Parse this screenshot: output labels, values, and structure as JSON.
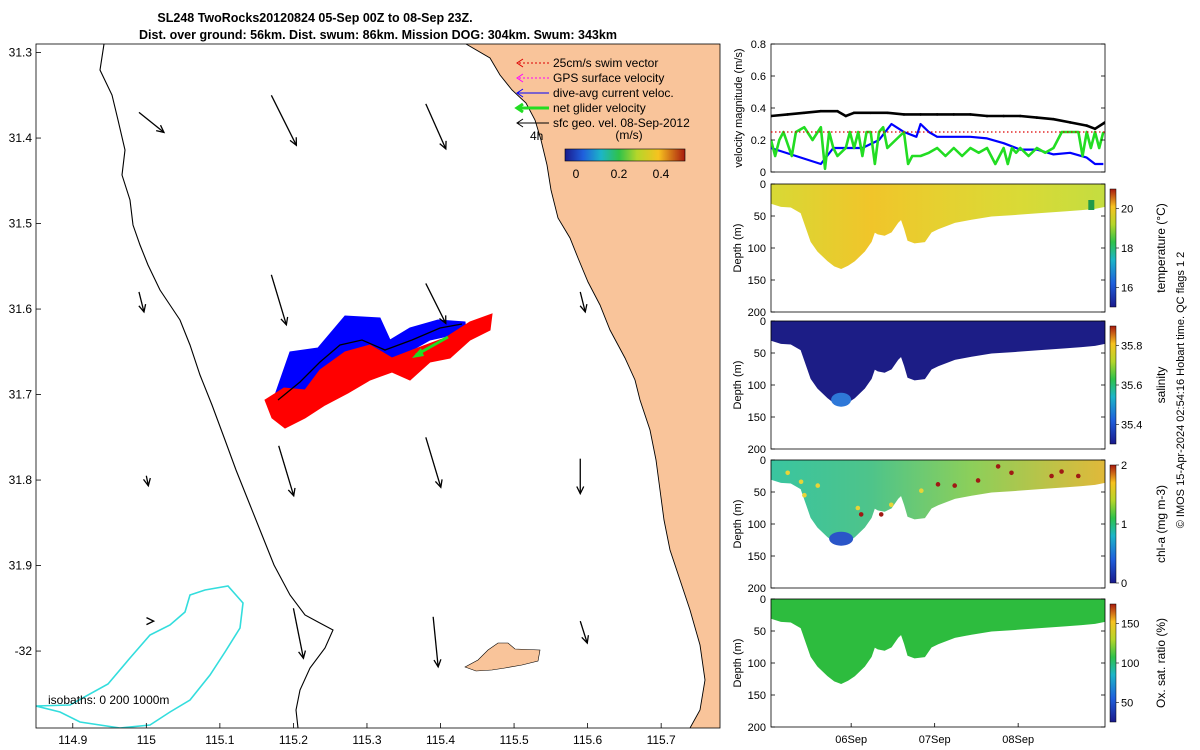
{
  "title": {
    "line1": "SL248 TwoRocks20120824 05-Sep 00Z to 08-Sep 23Z.",
    "line2": "Dist. over ground: 56km. Dist. swum: 86km. Mission DOG: 304km. Swum: 343km"
  },
  "colors": {
    "land": "#f9c49a",
    "coast": "#000000",
    "isobath_shallow": "#000000",
    "isobath_deep": "#33dddd",
    "track_red": "#ff0000",
    "track_blue": "#0000ff",
    "net_green": "#22dd22",
    "vec_black": "#000000",
    "swim_red": "#dd0000",
    "gps_magenta": "#ff00ff"
  },
  "chart_data": [
    {
      "type": "map",
      "id": "glider-map",
      "title": "SL248 TwoRocks20120824 05-Sep 00Z to 08-Sep 23Z.",
      "subtitle": "Dist. over ground: 56km. Dist. swum: 86km. Mission DOG: 304km. Swum: 343km",
      "xlim": [
        114.85,
        115.78
      ],
      "ylim": [
        -32.09,
        -31.29
      ],
      "x_ticks": [
        114.9,
        115.0,
        115.1,
        115.2,
        115.3,
        115.4,
        115.5,
        115.6,
        115.7
      ],
      "x_tick_labels": [
        "114.9",
        "115",
        "115.1",
        "115.2",
        "115.3",
        "115.4",
        "115.5",
        "115.6",
        "115.7"
      ],
      "y_ticks": [
        -31.3,
        -31.4,
        -31.5,
        -31.6,
        -31.7,
        -31.8,
        -31.9,
        -32.0
      ],
      "y_tick_labels": [
        "31.3",
        "31.4",
        "31.5",
        "31.6",
        "31.7",
        "31.8",
        "31.9",
        "-32"
      ],
      "legend": [
        {
          "label": "25cm/s swim vector",
          "color": "#dd0000",
          "style": "dotted"
        },
        {
          "label": "GPS surface velocity",
          "color": "#ff00ff",
          "style": "dotted"
        },
        {
          "label": "dive-avg current veloc.",
          "color": "#0000ff",
          "style": "solid"
        },
        {
          "label": "net glider velocity",
          "color": "#22dd22",
          "style": "thick"
        },
        {
          "label": "sfc geo. vel. 08-Sep-2012",
          "color": "#000000",
          "style": "solid"
        }
      ],
      "time_label": "4h",
      "colorbar": {
        "label": "(m/s)",
        "ticks": [
          "0",
          "0.2",
          "0.4"
        ],
        "range": [
          0,
          0.5
        ]
      },
      "isobath_label": "isobaths: 0   200  1000m",
      "geo_vectors": [
        {
          "lon": 114.99,
          "lat": -31.37,
          "u": 0.025,
          "v": -0.02
        },
        {
          "lon": 115.17,
          "lat": -31.35,
          "u": 0.025,
          "v": -0.05
        },
        {
          "lon": 115.38,
          "lat": -31.36,
          "u": 0.02,
          "v": -0.045
        },
        {
          "lon": 114.99,
          "lat": -31.58,
          "u": 0.005,
          "v": -0.02
        },
        {
          "lon": 115.17,
          "lat": -31.56,
          "u": 0.015,
          "v": -0.05
        },
        {
          "lon": 115.38,
          "lat": -31.57,
          "u": 0.02,
          "v": -0.04
        },
        {
          "lon": 115.59,
          "lat": -31.58,
          "u": 0.005,
          "v": -0.02
        },
        {
          "lon": 115.0,
          "lat": -31.795,
          "u": 0.002,
          "v": -0.01
        },
        {
          "lon": 115.18,
          "lat": -31.76,
          "u": 0.015,
          "v": -0.05
        },
        {
          "lon": 115.38,
          "lat": -31.75,
          "u": 0.015,
          "v": -0.05
        },
        {
          "lon": 115.59,
          "lat": -31.775,
          "u": 0.0,
          "v": -0.035
        },
        {
          "lon": 115.2,
          "lat": -31.95,
          "u": 0.01,
          "v": -0.05
        },
        {
          "lon": 115.39,
          "lat": -31.96,
          "u": 0.005,
          "v": -0.05
        },
        {
          "lon": 115.59,
          "lat": -31.965,
          "u": 0.007,
          "v": -0.022
        },
        {
          "lon": 115.01,
          "lat": -31.965,
          "u": 0.0,
          "v": -0.0
        }
      ]
    },
    {
      "type": "line",
      "id": "velocity-magnitude",
      "ylabel": "velocity magnitude (m/s)",
      "ylim": [
        0,
        0.8
      ],
      "y_ticks": [
        0,
        0.2,
        0.4,
        0.6,
        0.8
      ],
      "xlim": [
        0,
        4.02
      ],
      "series": [
        {
          "name": "sfc speed",
          "color": "#000000",
          "x": [
            0.0,
            0.2,
            0.4,
            0.6,
            0.8,
            0.9,
            1.0,
            1.2,
            1.4,
            1.6,
            1.8,
            2.0,
            2.2,
            2.4,
            2.6,
            2.8,
            3.0,
            3.2,
            3.4,
            3.6,
            3.8,
            3.9,
            4.02
          ],
          "values": [
            0.35,
            0.36,
            0.37,
            0.38,
            0.38,
            0.35,
            0.37,
            0.37,
            0.37,
            0.36,
            0.36,
            0.36,
            0.36,
            0.36,
            0.35,
            0.35,
            0.35,
            0.34,
            0.33,
            0.31,
            0.29,
            0.27,
            0.31
          ]
        },
        {
          "name": "dive-avg current",
          "color": "#0000ff",
          "x": [
            0.0,
            0.3,
            0.6,
            0.75,
            0.9,
            1.1,
            1.3,
            1.45,
            1.6,
            1.75,
            1.8,
            1.9,
            2.0,
            2.2,
            2.4,
            2.6,
            2.8,
            3.0,
            3.2,
            3.4,
            3.6,
            3.8,
            3.9,
            4.0
          ],
          "values": [
            0.15,
            0.1,
            0.05,
            0.15,
            0.15,
            0.15,
            0.2,
            0.3,
            0.25,
            0.22,
            0.3,
            0.25,
            0.22,
            0.22,
            0.22,
            0.21,
            0.18,
            0.14,
            0.14,
            0.11,
            0.12,
            0.09,
            0.05,
            0.05
          ]
        },
        {
          "name": "net glider",
          "color": "#22dd22",
          "x": [
            0.0,
            0.05,
            0.1,
            0.15,
            0.25,
            0.3,
            0.4,
            0.5,
            0.6,
            0.65,
            0.7,
            0.75,
            0.8,
            0.9,
            0.95,
            1.0,
            1.05,
            1.1,
            1.15,
            1.2,
            1.25,
            1.3,
            1.35,
            1.4,
            1.5,
            1.6,
            1.65,
            1.7,
            1.8,
            1.9,
            2.0,
            2.1,
            2.2,
            2.3,
            2.4,
            2.5,
            2.6,
            2.7,
            2.8,
            2.85,
            2.9,
            2.95,
            3.0,
            3.1,
            3.2,
            3.3,
            3.4,
            3.5,
            3.6,
            3.7,
            3.75,
            3.8,
            3.85,
            3.9,
            3.95,
            4.0
          ],
          "values": [
            0.2,
            0.1,
            0.2,
            0.25,
            0.1,
            0.25,
            0.28,
            0.2,
            0.28,
            0.02,
            0.25,
            0.15,
            0.1,
            0.15,
            0.25,
            0.15,
            0.25,
            0.1,
            0.25,
            0.25,
            0.05,
            0.25,
            0.28,
            0.15,
            0.2,
            0.25,
            0.05,
            0.1,
            0.1,
            0.12,
            0.15,
            0.1,
            0.15,
            0.1,
            0.15,
            0.12,
            0.15,
            0.05,
            0.15,
            0.05,
            0.15,
            0.12,
            0.15,
            0.1,
            0.15,
            0.12,
            0.15,
            0.25,
            0.25,
            0.25,
            0.1,
            0.25,
            0.15,
            0.25,
            0.15,
            0.25
          ]
        },
        {
          "name": "swim",
          "color": "#dd0000",
          "x": [
            0.0,
            4.02
          ],
          "values": [
            0.25,
            0.25
          ]
        }
      ]
    },
    {
      "type": "heatmap",
      "id": "section-temperature",
      "ylabel": "Depth (m)",
      "cbar_label": "temperature (°C)",
      "cbar_ticks": [
        "16",
        "18",
        "20"
      ],
      "cbar_range": [
        15,
        21
      ],
      "ylim": [
        0,
        200
      ],
      "y_ticks": [
        0,
        50,
        100,
        150,
        200
      ],
      "dominant_value": 19.5,
      "colormap": "parula-like"
    },
    {
      "type": "heatmap",
      "id": "section-salinity",
      "ylabel": "Depth (m)",
      "cbar_label": "salinity",
      "cbar_ticks": [
        "35.4",
        "35.6",
        "35.8"
      ],
      "cbar_range": [
        35.3,
        35.9
      ],
      "ylim": [
        0,
        200
      ],
      "y_ticks": [
        0,
        50,
        100,
        150,
        200
      ],
      "dominant_value": 35.35,
      "colormap": "parula-like"
    },
    {
      "type": "heatmap",
      "id": "section-chla",
      "ylabel": "Depth (m)",
      "cbar_label": "chl-a (mg m-3)",
      "cbar_ticks": [
        "0",
        "1",
        "2"
      ],
      "cbar_range": [
        0,
        2
      ],
      "ylim": [
        0,
        200
      ],
      "y_ticks": [
        0,
        50,
        100,
        150,
        200
      ],
      "dominant_value": 0.9,
      "colormap": "parula-like"
    },
    {
      "type": "heatmap",
      "id": "section-oxsat",
      "ylabel": "Depth (m)",
      "cbar_label": "Ox. sat. ratio (%)",
      "cbar_ticks": [
        "50",
        "100",
        "150"
      ],
      "cbar_range": [
        25,
        175
      ],
      "ylim": [
        0,
        200
      ],
      "y_ticks": [
        0,
        50,
        100,
        150,
        200
      ],
      "x_ticks": [
        "06Sep",
        "07Sep",
        "08Sep"
      ],
      "dominant_value": 110,
      "colormap": "parula-like"
    }
  ],
  "right_axis_note": "© IMOS 15-Apr-2024 02:54:16 Hobart time. QC flags 1  2"
}
